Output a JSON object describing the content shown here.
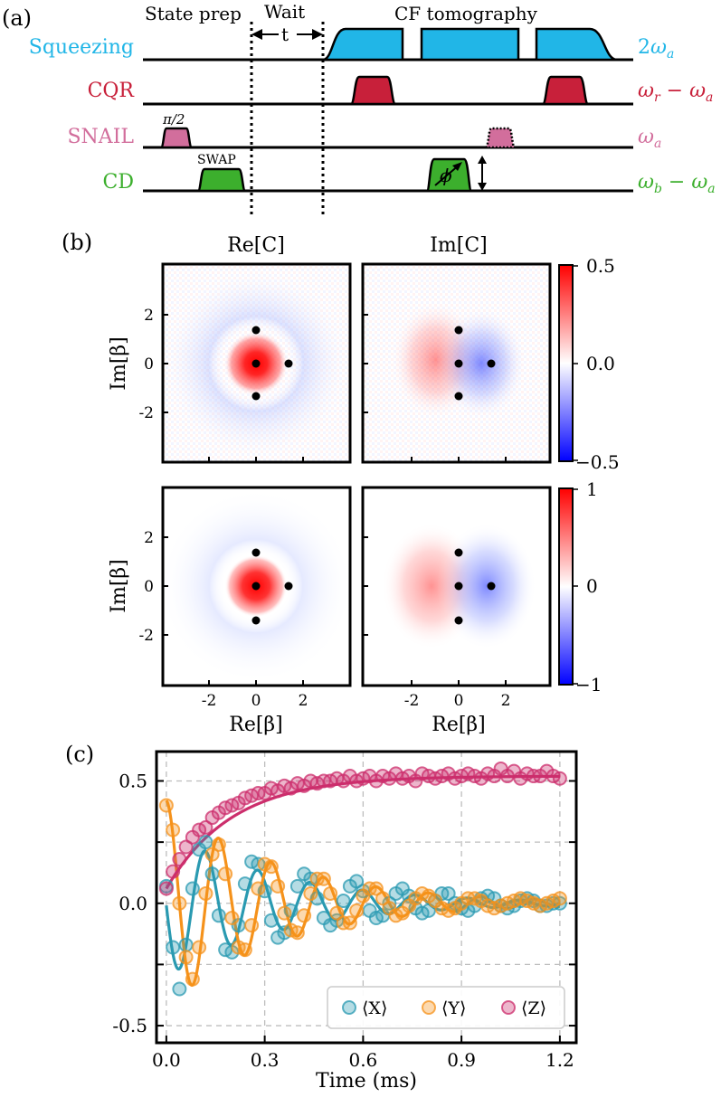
{
  "panel_labels": {
    "a": "(a)",
    "b": "(b)",
    "c": "(c)"
  },
  "colors": {
    "squeezing": "#21b6e7",
    "cqr": "#c8203a",
    "snail": "#d26e9c",
    "cd": "#3caf2d",
    "x": "#2a9ab1",
    "y": "#f5921b",
    "z": "#cc2e6c",
    "heat_positive": "#ff0000",
    "heat_negative": "#0000ff"
  },
  "pulse_sequence": {
    "section_headers": {
      "state_prep": "State prep",
      "wait": "Wait",
      "wait_symbol": "t",
      "cf_tomography": "CF tomography"
    },
    "channels": [
      {
        "key": "squeezing",
        "label": "Squeezing",
        "freq_lead": "2",
        "freq_var": "ω",
        "freq_sub": "a",
        "freq_tail": ""
      },
      {
        "key": "cqr",
        "label": "CQR",
        "freq_lead": "",
        "freq_var": "ω",
        "freq_sub": "r",
        "freq_tail": " − ω",
        "freq_tail_sub": "a"
      },
      {
        "key": "snail",
        "label": "SNAIL",
        "freq_lead": "",
        "freq_var": "ω",
        "freq_sub": "a",
        "freq_tail": ""
      },
      {
        "key": "cd",
        "label": "CD",
        "freq_lead": "",
        "freq_var": "ω",
        "freq_sub": "b",
        "freq_tail": " − ω",
        "freq_tail_sub": "a"
      }
    ],
    "pulse_labels": {
      "pi_half": "π/2",
      "swap": "SWAP",
      "phi": "ϕ"
    }
  },
  "panel_b": {
    "col_titles": [
      "Re[C]",
      "Im[C]"
    ],
    "ylabel": "Im[β]",
    "xlabel": "Re[β]",
    "tick_labels": [
      "-2",
      "0",
      "2"
    ],
    "colorbar_top": [
      "0.5",
      "0.0",
      "−0.5"
    ],
    "colorbar_bottom": [
      "1",
      "0",
      "−1"
    ]
  },
  "chart_data": {
    "type": "scatter",
    "title": "",
    "xlabel": "Time (ms)",
    "ylabel": "",
    "xlim": [
      -0.03,
      1.25
    ],
    "ylim": [
      -0.57,
      0.62
    ],
    "xticks": [
      "0.0",
      "0.3",
      "0.6",
      "0.9",
      "1.2"
    ],
    "yticks": [
      "0.5",
      "0.0",
      "-0.5"
    ],
    "grid": true,
    "legend_placement": "bottom-right",
    "x": [
      0.0,
      0.02,
      0.04,
      0.06,
      0.08,
      0.1,
      0.12,
      0.14,
      0.16,
      0.18,
      0.2,
      0.22,
      0.24,
      0.26,
      0.28,
      0.3,
      0.32,
      0.34,
      0.36,
      0.38,
      0.4,
      0.42,
      0.44,
      0.46,
      0.48,
      0.5,
      0.52,
      0.54,
      0.56,
      0.58,
      0.6,
      0.62,
      0.64,
      0.66,
      0.68,
      0.7,
      0.72,
      0.74,
      0.76,
      0.78,
      0.8,
      0.82,
      0.84,
      0.86,
      0.88,
      0.9,
      0.92,
      0.94,
      0.96,
      0.98,
      1.0,
      1.02,
      1.04,
      1.06,
      1.08,
      1.1,
      1.12,
      1.14,
      1.16,
      1.18,
      1.2
    ],
    "series": [
      {
        "name": "⟨X⟩",
        "color": "#2a9ab1",
        "values": [
          0.07,
          -0.18,
          -0.35,
          -0.17,
          0.06,
          0.22,
          0.25,
          0.12,
          -0.05,
          -0.19,
          -0.2,
          -0.09,
          0.08,
          0.17,
          0.16,
          0.05,
          -0.07,
          -0.14,
          -0.12,
          -0.03,
          0.07,
          0.12,
          0.1,
          0.02,
          -0.06,
          -0.09,
          -0.07,
          0.01,
          0.07,
          0.09,
          0.05,
          -0.03,
          -0.06,
          -0.05,
          0.0,
          0.04,
          0.06,
          0.03,
          -0.02,
          -0.04,
          -0.03,
          0.01,
          0.04,
          0.04,
          0.0,
          -0.02,
          -0.03,
          -0.01,
          0.02,
          0.03,
          0.02,
          -0.01,
          -0.02,
          -0.01,
          0.01,
          0.02,
          0.01,
          -0.01,
          -0.01,
          0.0,
          0.0
        ]
      },
      {
        "name": "⟨Y⟩",
        "color": "#f5921b",
        "values": [
          0.4,
          0.3,
          0.0,
          -0.22,
          -0.31,
          -0.18,
          0.04,
          0.2,
          0.24,
          0.12,
          -0.06,
          -0.18,
          -0.19,
          -0.09,
          0.06,
          0.16,
          0.15,
          0.07,
          -0.04,
          -0.11,
          -0.12,
          -0.05,
          0.04,
          0.1,
          0.1,
          0.04,
          -0.04,
          -0.08,
          -0.08,
          -0.03,
          0.03,
          0.06,
          0.06,
          0.02,
          -0.02,
          -0.05,
          -0.04,
          -0.01,
          0.02,
          0.04,
          0.03,
          0.01,
          -0.02,
          -0.03,
          -0.02,
          0.0,
          0.02,
          0.02,
          0.01,
          -0.01,
          -0.02,
          -0.01,
          0.0,
          0.01,
          0.02,
          0.01,
          0.0,
          -0.01,
          0.0,
          0.01,
          0.02
        ]
      },
      {
        "name": "⟨Z⟩",
        "color": "#cc2e6c",
        "values": [
          0.06,
          0.13,
          0.18,
          0.23,
          0.27,
          0.3,
          0.31,
          0.35,
          0.37,
          0.39,
          0.4,
          0.41,
          0.43,
          0.44,
          0.45,
          0.45,
          0.47,
          0.46,
          0.48,
          0.47,
          0.49,
          0.48,
          0.5,
          0.49,
          0.5,
          0.5,
          0.51,
          0.5,
          0.52,
          0.5,
          0.51,
          0.52,
          0.5,
          0.52,
          0.51,
          0.53,
          0.51,
          0.52,
          0.5,
          0.53,
          0.52,
          0.51,
          0.52,
          0.53,
          0.51,
          0.52,
          0.53,
          0.52,
          0.51,
          0.53,
          0.52,
          0.55,
          0.52,
          0.54,
          0.51,
          0.53,
          0.52,
          0.52,
          0.54,
          0.52,
          0.51
        ]
      }
    ],
    "fits": [
      {
        "series": "⟨X⟩",
        "amplitude": 0.3,
        "offset": 0.0,
        "tau_ms": 0.35,
        "period_ms": 0.16,
        "phase_rad": 1.6
      },
      {
        "series": "⟨Y⟩",
        "amplitude": 0.42,
        "offset": 0.0,
        "tau_ms": 0.35,
        "period_ms": 0.16,
        "phase_rad": 0.0
      },
      {
        "series": "⟨Z⟩",
        "start": 0.06,
        "end": 0.52,
        "tau_ms": 0.2
      }
    ]
  }
}
